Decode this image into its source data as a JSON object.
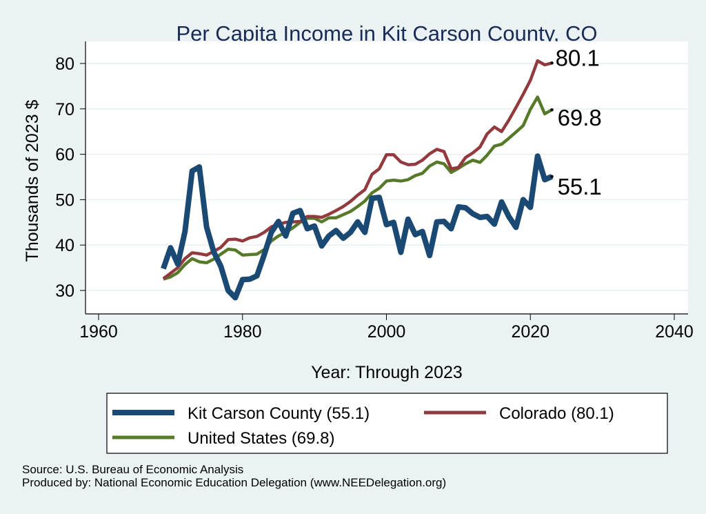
{
  "chart_data": {
    "type": "line",
    "title": "Per Capita Income in Kit Carson County, CO",
    "xlabel": "Year: Through 2023",
    "ylabel": "Thousands of 2023 $",
    "xlim": [
      1958,
      2042
    ],
    "ylim": [
      27,
      82
    ],
    "xticks": [
      1960,
      1980,
      2000,
      2020,
      2040
    ],
    "yticks": [
      30,
      40,
      50,
      60,
      70,
      80
    ],
    "grid": "horizontal",
    "legend_position": "bottom",
    "x": [
      1969,
      1970,
      1971,
      1972,
      1973,
      1974,
      1975,
      1976,
      1977,
      1978,
      1979,
      1980,
      1981,
      1982,
      1983,
      1984,
      1985,
      1986,
      1987,
      1988,
      1989,
      1990,
      1991,
      1992,
      1993,
      1994,
      1995,
      1996,
      1997,
      1998,
      1999,
      2000,
      2001,
      2002,
      2003,
      2004,
      2005,
      2006,
      2007,
      2008,
      2009,
      2010,
      2011,
      2012,
      2013,
      2014,
      2015,
      2016,
      2017,
      2018,
      2019,
      2020,
      2021,
      2022,
      2023
    ],
    "series": [
      {
        "name": "Kit Carson County (55.1)",
        "color": "#1a4a74",
        "end_label": "55.1",
        "values": [
          34.8,
          39.4,
          35.8,
          43.0,
          56.3,
          57.2,
          44.0,
          38.5,
          35.3,
          30.0,
          28.4,
          32.4,
          32.5,
          33.2,
          37.8,
          42.8,
          45.2,
          42.0,
          47.0,
          47.6,
          43.6,
          44.2,
          39.8,
          42.0,
          43.2,
          41.5,
          42.8,
          45.1,
          42.8,
          50.3,
          50.5,
          44.5,
          45.0,
          38.4,
          45.7,
          42.3,
          43.0,
          37.7,
          45.1,
          45.2,
          43.6,
          48.4,
          48.2,
          46.9,
          46.1,
          46.3,
          44.6,
          49.5,
          46.3,
          43.9,
          50.0,
          48.3,
          59.6,
          54.4,
          55.1
        ]
      },
      {
        "name": "Colorado (80.1)",
        "color": "#923a3e",
        "end_label": "80.1",
        "values": [
          32.6,
          33.8,
          35.0,
          37.0,
          38.3,
          38.1,
          37.8,
          38.6,
          39.5,
          41.2,
          41.3,
          40.9,
          41.6,
          41.9,
          42.8,
          44.0,
          44.6,
          45.0,
          45.1,
          45.2,
          46.3,
          46.3,
          46.1,
          46.8,
          47.6,
          48.5,
          49.6,
          51.0,
          52.2,
          55.6,
          56.8,
          59.9,
          59.9,
          58.3,
          57.7,
          57.8,
          58.7,
          60.1,
          61.1,
          60.6,
          56.8,
          57.1,
          59.3,
          60.3,
          61.6,
          64.5,
          66.0,
          65.0,
          67.5,
          70.3,
          73.2,
          76.3,
          80.6,
          79.7,
          80.1
        ]
      },
      {
        "name": "United States (69.8)",
        "color": "#567a2a",
        "end_label": "69.8",
        "values": [
          32.5,
          33.0,
          33.9,
          35.7,
          37.0,
          36.3,
          36.1,
          36.9,
          38.0,
          39.1,
          38.9,
          37.8,
          37.9,
          38.0,
          39.0,
          40.9,
          42.0,
          42.8,
          43.8,
          45.0,
          45.9,
          45.9,
          45.1,
          46.0,
          46.0,
          46.7,
          47.4,
          48.5,
          49.7,
          51.5,
          52.5,
          54.1,
          54.3,
          54.1,
          54.4,
          55.3,
          55.8,
          57.4,
          58.3,
          57.9,
          56.0,
          56.9,
          57.9,
          58.7,
          58.2,
          59.8,
          61.8,
          62.2,
          63.5,
          64.9,
          66.3,
          69.9,
          72.6,
          68.9,
          69.8
        ]
      }
    ]
  },
  "footer": {
    "source": "Source: U.S. Bureau of Economic Analysis",
    "produced_by": "Produced by: National Economic Education Delegation (www.NEEDelegation.org)"
  }
}
